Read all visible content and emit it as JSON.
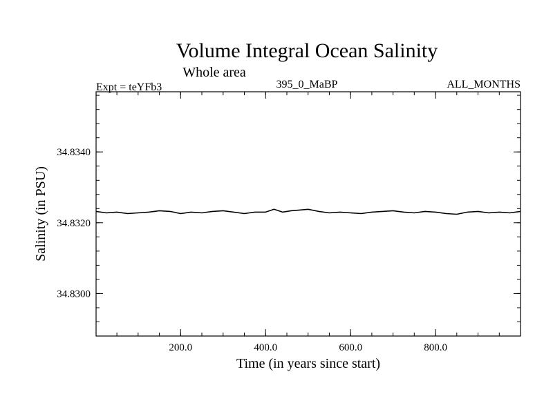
{
  "chart_data": {
    "type": "line",
    "title": "Volume Integral Ocean Salinity",
    "subtitle": "Whole area",
    "annotations": {
      "left": "Expt = teYFb3",
      "center": "395_0_MaBP",
      "right": "ALL_MONTHS"
    },
    "xlabel": "Time (in years since start)",
    "ylabel": "Salinity (in PSU)",
    "xlim": [
      1,
      1000
    ],
    "ylim": [
      34.8288,
      34.8357
    ],
    "x_ticks": [
      200,
      400,
      600,
      800
    ],
    "x_tick_labels": [
      "200.0",
      "400.0",
      "600.0",
      "800.0"
    ],
    "x_minor_step": 50,
    "y_ticks": [
      34.83,
      34.832,
      34.834
    ],
    "y_tick_labels": [
      "34.8300",
      "34.8320",
      "34.8340"
    ],
    "y_minor_step": 0.0004,
    "series": [
      {
        "name": "salinity",
        "color": "#000000",
        "x": [
          1,
          25,
          50,
          75,
          100,
          125,
          150,
          175,
          200,
          225,
          250,
          275,
          300,
          325,
          350,
          375,
          400,
          420,
          440,
          460,
          480,
          500,
          525,
          550,
          575,
          600,
          625,
          650,
          675,
          700,
          725,
          750,
          775,
          800,
          825,
          850,
          875,
          900,
          925,
          950,
          975,
          1000
        ],
        "values": [
          34.83232,
          34.83228,
          34.8323,
          34.83226,
          34.83228,
          34.8323,
          34.83234,
          34.83232,
          34.83226,
          34.8323,
          34.83228,
          34.83232,
          34.83234,
          34.8323,
          34.83226,
          34.8323,
          34.8323,
          34.83238,
          34.8323,
          34.83234,
          34.83236,
          34.83238,
          34.83232,
          34.83228,
          34.8323,
          34.83228,
          34.83226,
          34.8323,
          34.83232,
          34.83234,
          34.8323,
          34.83228,
          34.83232,
          34.8323,
          34.83226,
          34.83224,
          34.8323,
          34.83232,
          34.83228,
          34.8323,
          34.83228,
          34.83232
        ]
      }
    ]
  }
}
